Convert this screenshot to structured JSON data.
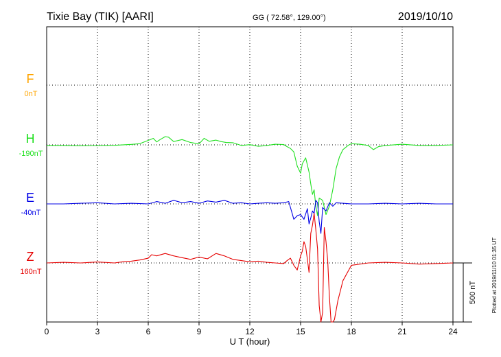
{
  "header": {
    "station": "Tixie Bay (TIK)  [AARI]",
    "coords": "GG ( 72.58°, 129.00°)",
    "date": "2019/10/10"
  },
  "footer": {
    "plotted": "Plotted at 2019/11/10 01:35 UT"
  },
  "chart_data": {
    "type": "line",
    "xlabel": "U T (hour)",
    "xlim": [
      0,
      24
    ],
    "xticks": [
      "0",
      "3",
      "6",
      "9",
      "12",
      "15",
      "18",
      "21",
      "24"
    ],
    "scale_bar": {
      "label": "500 nT",
      "value_nT": 500
    },
    "series": [
      {
        "name": "F",
        "baseline_label": "0nT",
        "color": "#ffa500",
        "x": [],
        "y": []
      },
      {
        "name": "H",
        "baseline_label": "-190nT",
        "color": "#1fe01f",
        "x": [
          0,
          1,
          2,
          3,
          4,
          5,
          5.5,
          6,
          6.3,
          6.5,
          6.7,
          7,
          7.2,
          7.5,
          8,
          8.5,
          9,
          9.3,
          9.6,
          10,
          10.3,
          10.6,
          11,
          11.5,
          12,
          12.5,
          13,
          13.5,
          14,
          14.2,
          14.4,
          14.6,
          14.8,
          15,
          15.1,
          15.3,
          15.5,
          15.6,
          15.7,
          15.8,
          15.9,
          16,
          16.1,
          16.3,
          16.5,
          16.7,
          16.9,
          17.1,
          17.3,
          17.5,
          17.8,
          18,
          18.5,
          19,
          19.3,
          19.6,
          20,
          21,
          22,
          23,
          24
        ],
        "y": [
          -5,
          -5,
          -8,
          -6,
          -4,
          4,
          10,
          38,
          55,
          25,
          45,
          70,
          65,
          28,
          45,
          20,
          8,
          55,
          30,
          40,
          28,
          20,
          18,
          -5,
          2,
          -12,
          -5,
          5,
          3,
          -15,
          -30,
          -60,
          -180,
          -240,
          -160,
          -110,
          -230,
          -330,
          -420,
          -380,
          -520,
          -600,
          -450,
          -470,
          -590,
          -520,
          -380,
          -200,
          -100,
          -40,
          -5,
          10,
          5,
          -5,
          -40,
          -15,
          -5,
          5,
          -5,
          -5,
          0
        ]
      },
      {
        "name": "E",
        "baseline_label": "-40nT",
        "color": "#0000e6",
        "x": [
          0,
          1,
          2,
          3,
          4,
          5,
          6,
          6.5,
          7,
          7.5,
          8,
          8.5,
          9,
          9.5,
          10,
          10.5,
          11,
          11.5,
          12,
          12.5,
          13,
          13.5,
          14,
          14.3,
          14.5,
          14.6,
          14.8,
          15,
          15.2,
          15.4,
          15.5,
          15.6,
          15.7,
          15.8,
          15.9,
          16,
          16.1,
          16.2,
          16.3,
          16.5,
          16.7,
          16.9,
          17.1,
          17.5,
          18,
          19,
          20,
          21,
          22,
          23,
          24
        ],
        "y": [
          0,
          0,
          5,
          10,
          0,
          5,
          0,
          20,
          5,
          30,
          10,
          20,
          5,
          25,
          15,
          30,
          5,
          10,
          0,
          5,
          10,
          5,
          10,
          20,
          -80,
          -130,
          -100,
          -90,
          -130,
          -40,
          -170,
          -120,
          -60,
          -80,
          30,
          10,
          -150,
          -250,
          -30,
          -60,
          10,
          -20,
          10,
          5,
          0,
          0,
          5,
          0,
          5,
          0,
          0
        ]
      },
      {
        "name": "Z",
        "baseline_label": "160nT",
        "color": "#e60000",
        "x": [
          0,
          1,
          2,
          3,
          4,
          4.5,
          5,
          5.5,
          6,
          6.2,
          6.5,
          7,
          7.5,
          8,
          8.5,
          9,
          9.5,
          10,
          10.5,
          11,
          11.5,
          12,
          12.5,
          13,
          13.5,
          14,
          14.2,
          14.4,
          14.6,
          14.8,
          15,
          15.1,
          15.2,
          15.3,
          15.4,
          15.5,
          15.6,
          15.7,
          15.8,
          15.9,
          16,
          16.1,
          16.2,
          16.3,
          16.4,
          16.5,
          16.6,
          16.7,
          16.8,
          16.9,
          17,
          17.2,
          17.5,
          18,
          19,
          20,
          21,
          22,
          23,
          24
        ],
        "y": [
          0,
          5,
          0,
          8,
          0,
          10,
          15,
          25,
          40,
          70,
          60,
          80,
          60,
          45,
          30,
          50,
          35,
          80,
          60,
          30,
          20,
          10,
          15,
          5,
          0,
          -5,
          20,
          40,
          -20,
          -60,
          60,
          100,
          180,
          140,
          30,
          -80,
          250,
          320,
          420,
          280,
          120,
          -360,
          -900,
          -420,
          300,
          180,
          20,
          -280,
          -520,
          -650,
          -480,
          -320,
          -150,
          -20,
          0,
          5,
          0,
          -10,
          -5,
          0
        ]
      }
    ]
  }
}
